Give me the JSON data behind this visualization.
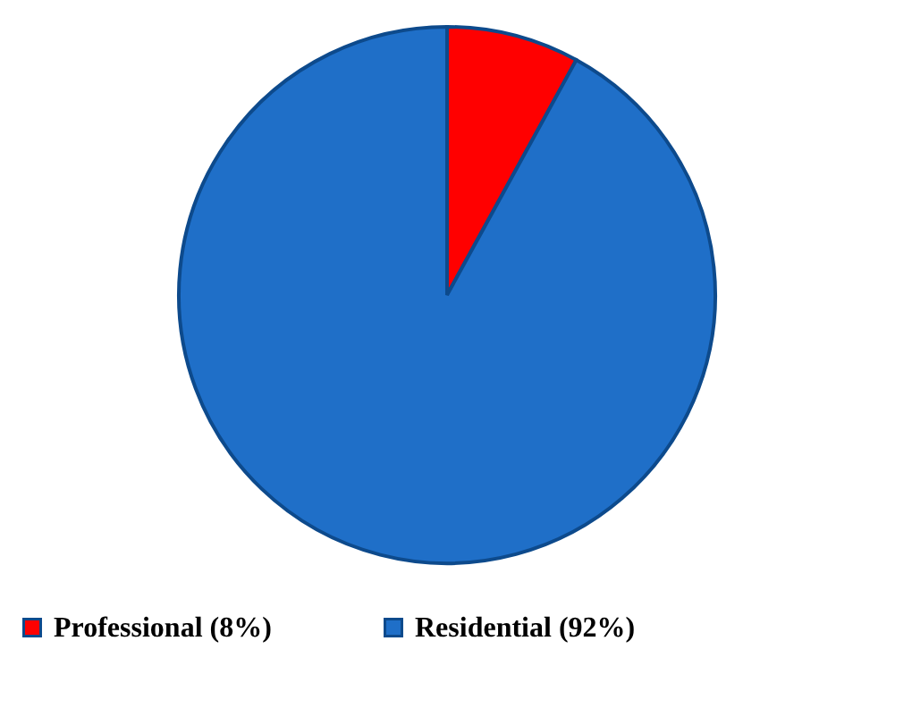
{
  "chart_data": {
    "type": "pie",
    "categories": [
      "Professional (8%)",
      "Residential (92%)"
    ],
    "values": [
      8,
      92
    ],
    "colors": [
      "#ff0000",
      "#1f6fc8"
    ],
    "legend": "bottom"
  }
}
